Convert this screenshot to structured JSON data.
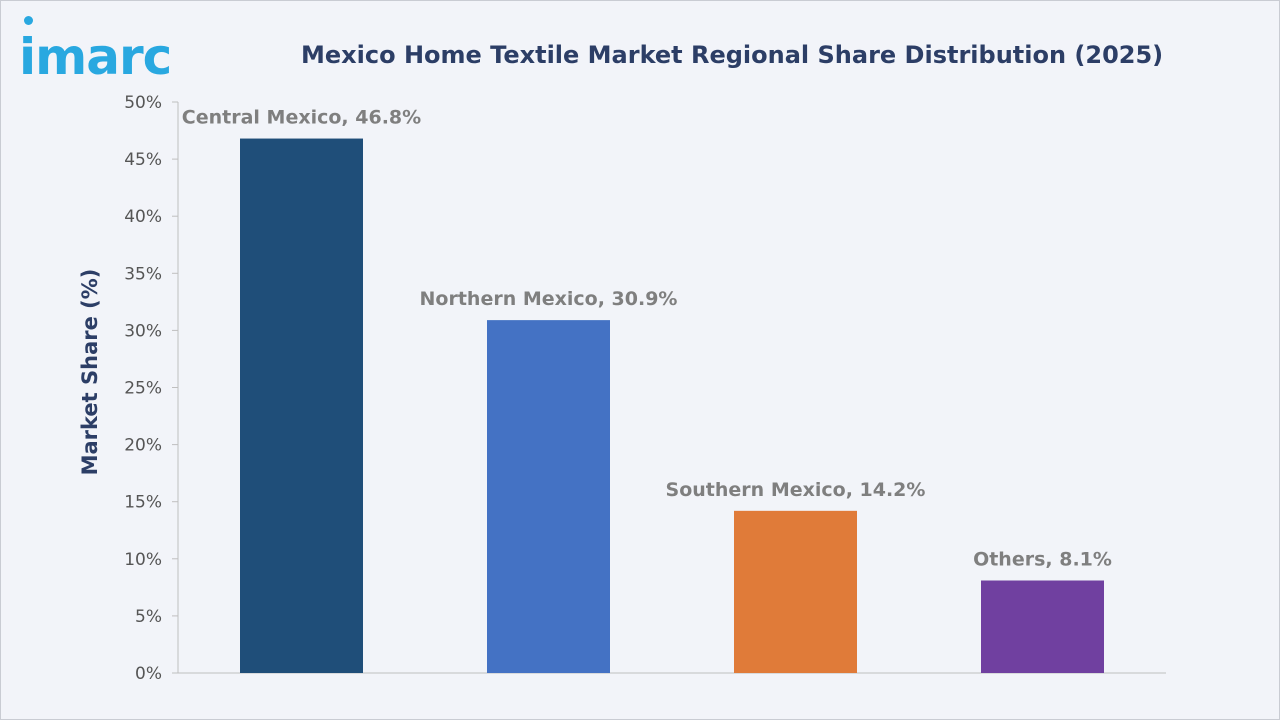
{
  "brand": {
    "logo_text": "imarc",
    "logo_color": "#29a8e0"
  },
  "chart_data": {
    "type": "bar",
    "title": "Mexico Home Textile Market Regional Share Distribution (2025)",
    "xlabel": "",
    "ylabel": "Market Share (%)",
    "categories": [
      "Central Mexico",
      "Northern Mexico",
      "Southern Mexico",
      "Others"
    ],
    "values": [
      46.8,
      30.9,
      14.2,
      8.1
    ],
    "data_labels": [
      "Central Mexico, 46.8%",
      "Northern Mexico, 30.9%",
      "Southern Mexico, 14.2%",
      "Others, 8.1%"
    ],
    "colors": [
      "#1f4e79",
      "#4472c4",
      "#e07b39",
      "#7040a0"
    ],
    "ylim": [
      0,
      50
    ],
    "yticks": [
      0,
      5,
      10,
      15,
      20,
      25,
      30,
      35,
      40,
      45,
      50
    ],
    "ytick_labels": [
      "0%",
      "5%",
      "10%",
      "15%",
      "20%",
      "25%",
      "30%",
      "35%",
      "40%",
      "45%",
      "50%"
    ],
    "grid": false,
    "legend": "none"
  }
}
